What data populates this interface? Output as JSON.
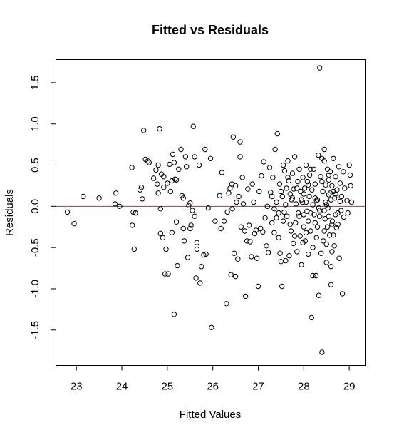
{
  "chart_data": {
    "type": "scatter",
    "title": "Fitted vs Residuals",
    "xlabel": "Fitted Values",
    "ylabel": "Residuals",
    "xlim": [
      22.55,
      29.35
    ],
    "ylim": [
      -1.93,
      1.78
    ],
    "xticks": [
      23,
      24,
      25,
      26,
      27,
      28,
      29
    ],
    "yticks": [
      -1.5,
      -1.0,
      -0.5,
      0.0,
      0.5,
      1.0,
      1.5
    ],
    "xtick_labels": [
      "23",
      "24",
      "25",
      "26",
      "27",
      "28",
      "29"
    ],
    "ytick_labels": [
      "-1.5",
      "-1.0",
      "-0.5",
      "0.0",
      "0.5",
      "1.0",
      "1.5"
    ],
    "reference_line": {
      "y": 0,
      "color": "#e0201b"
    },
    "point_color": "#000000",
    "grid": false,
    "points": [
      [
        22.8,
        -0.07
      ],
      [
        22.95,
        -0.21
      ],
      [
        23.15,
        0.12
      ],
      [
        23.5,
        0.1
      ],
      [
        23.85,
        0.03
      ],
      [
        23.87,
        0.16
      ],
      [
        23.95,
        0.0
      ],
      [
        24.22,
        0.47
      ],
      [
        24.23,
        -0.23
      ],
      [
        24.25,
        -0.07
      ],
      [
        24.27,
        -0.52
      ],
      [
        24.3,
        -0.08
      ],
      [
        24.3,
        -0.08
      ],
      [
        24.4,
        0.2
      ],
      [
        24.43,
        0.23
      ],
      [
        24.45,
        0.09
      ],
      [
        24.48,
        0.92
      ],
      [
        24.52,
        0.57
      ],
      [
        24.57,
        0.55
      ],
      [
        24.6,
        0.53
      ],
      [
        24.7,
        0.34
      ],
      [
        24.75,
        0.44
      ],
      [
        24.78,
        0.27
      ],
      [
        24.8,
        0.16
      ],
      [
        24.8,
        0.5
      ],
      [
        24.83,
        0.94
      ],
      [
        24.85,
        -0.33
      ],
      [
        24.85,
        -0.03
      ],
      [
        24.87,
        0.39
      ],
      [
        24.9,
        -0.38
      ],
      [
        24.92,
        0.36
      ],
      [
        24.92,
        0.23
      ],
      [
        24.95,
        -0.82
      ],
      [
        24.97,
        -0.52
      ],
      [
        25.0,
        0.28
      ],
      [
        25.02,
        -0.82
      ],
      [
        25.05,
        0.51
      ],
      [
        25.07,
        0.18
      ],
      [
        25.1,
        0.31
      ],
      [
        25.1,
        -0.32
      ],
      [
        25.12,
        0.63
      ],
      [
        25.15,
        -1.31
      ],
      [
        25.15,
        0.53
      ],
      [
        25.17,
        0.33
      ],
      [
        25.2,
        0.32
      ],
      [
        25.2,
        -0.19
      ],
      [
        25.22,
        -0.72
      ],
      [
        25.25,
        0.45
      ],
      [
        25.3,
        0.69
      ],
      [
        25.32,
        0.13
      ],
      [
        25.35,
        0.1
      ],
      [
        25.35,
        -0.27
      ],
      [
        25.37,
        -0.42
      ],
      [
        25.4,
        0.6
      ],
      [
        25.42,
        0.48
      ],
      [
        25.45,
        -0.62
      ],
      [
        25.47,
        0.01
      ],
      [
        25.5,
        0.04
      ],
      [
        25.5,
        -0.27
      ],
      [
        25.52,
        -0.23
      ],
      [
        25.55,
        -0.05
      ],
      [
        25.57,
        0.97
      ],
      [
        25.6,
        0.6
      ],
      [
        25.6,
        -0.12
      ],
      [
        25.63,
        -0.87
      ],
      [
        25.65,
        -0.52
      ],
      [
        25.65,
        -0.44
      ],
      [
        25.7,
        0.5
      ],
      [
        25.72,
        -0.93
      ],
      [
        25.75,
        -0.73
      ],
      [
        25.8,
        -0.59
      ],
      [
        25.83,
        0.69
      ],
      [
        25.85,
        -0.58
      ],
      [
        25.9,
        -0.02
      ],
      [
        25.95,
        0.58
      ],
      [
        25.97,
        -1.47
      ],
      [
        26.05,
        -0.18
      ],
      [
        26.15,
        0.13
      ],
      [
        26.18,
        -0.27
      ],
      [
        26.2,
        0.41
      ],
      [
        26.25,
        -0.18
      ],
      [
        26.3,
        -1.18
      ],
      [
        26.32,
        -0.07
      ],
      [
        26.35,
        0.16
      ],
      [
        26.38,
        0.22
      ],
      [
        26.4,
        -0.83
      ],
      [
        26.42,
        0.27
      ],
      [
        26.43,
        -0.03
      ],
      [
        26.45,
        0.84
      ],
      [
        26.47,
        -0.57
      ],
      [
        26.5,
        -0.85
      ],
      [
        26.5,
        0.25
      ],
      [
        26.52,
        0.05
      ],
      [
        26.55,
        -0.64
      ],
      [
        26.57,
        0.12
      ],
      [
        26.6,
        0.78
      ],
      [
        26.6,
        0.6
      ],
      [
        26.62,
        -0.25
      ],
      [
        26.65,
        0.35
      ],
      [
        26.67,
        0.03
      ],
      [
        26.7,
        -0.3
      ],
      [
        26.72,
        -1.09
      ],
      [
        26.75,
        -0.42
      ],
      [
        26.77,
        0.21
      ],
      [
        26.8,
        -0.23
      ],
      [
        26.82,
        -0.43
      ],
      [
        26.85,
        -0.61
      ],
      [
        26.87,
        0.27
      ],
      [
        26.9,
        0.05
      ],
      [
        26.92,
        -0.33
      ],
      [
        26.95,
        -0.29
      ],
      [
        26.97,
        -0.63
      ],
      [
        27.0,
        -0.97
      ],
      [
        27.02,
        0.18
      ],
      [
        27.05,
        -0.27
      ],
      [
        27.07,
        0.37
      ],
      [
        27.1,
        -0.31
      ],
      [
        27.12,
        0.54
      ],
      [
        27.15,
        -0.14
      ],
      [
        27.18,
        -0.48
      ],
      [
        27.2,
        0.0
      ],
      [
        27.22,
        -0.56
      ],
      [
        27.25,
        0.47
      ],
      [
        27.27,
        0.17
      ],
      [
        27.3,
        -0.2
      ],
      [
        27.32,
        0.35
      ],
      [
        27.35,
        -0.03
      ],
      [
        27.37,
        0.69
      ],
      [
        27.4,
        -0.14
      ],
      [
        27.42,
        0.88
      ],
      [
        27.45,
        -0.38
      ],
      [
        27.47,
        0.27
      ],
      [
        27.48,
        -0.57
      ],
      [
        27.5,
        -0.67
      ],
      [
        27.52,
        -0.97
      ],
      [
        27.53,
        0.12
      ],
      [
        27.55,
        0.5
      ],
      [
        27.57,
        -0.07
      ],
      [
        27.58,
        0.43
      ],
      [
        27.6,
        -0.66
      ],
      [
        27.62,
        0.22
      ],
      [
        27.63,
        -0.12
      ],
      [
        27.65,
        0.55
      ],
      [
        27.67,
        0.31
      ],
      [
        27.68,
        -0.6
      ],
      [
        27.7,
        0.15
      ],
      [
        27.72,
        -0.3
      ],
      [
        27.73,
        0.08
      ],
      [
        27.75,
        0.4
      ],
      [
        27.77,
        -0.45
      ],
      [
        27.78,
        0.21
      ],
      [
        27.8,
        0.6
      ],
      [
        27.82,
        -0.2
      ],
      [
        27.83,
        0.03
      ],
      [
        27.85,
        -0.55
      ],
      [
        27.87,
        0.3
      ],
      [
        27.88,
        -0.08
      ],
      [
        27.9,
        0.45
      ],
      [
        27.92,
        -0.36
      ],
      [
        27.93,
        0.18
      ],
      [
        27.95,
        -0.71
      ],
      [
        27.97,
        0.05
      ],
      [
        27.98,
        0.35
      ],
      [
        28.0,
        -0.25
      ],
      [
        28.02,
        0.22
      ],
      [
        28.03,
        -0.42
      ],
      [
        28.05,
        0.5
      ],
      [
        28.07,
        -0.06
      ],
      [
        28.08,
        0.3
      ],
      [
        28.1,
        -0.58
      ],
      [
        28.12,
        0.12
      ],
      [
        28.13,
        0.38
      ],
      [
        28.15,
        -0.3
      ],
      [
        28.17,
        -1.35
      ],
      [
        28.18,
        0.2
      ],
      [
        28.2,
        -0.5
      ],
      [
        28.22,
        0.45
      ],
      [
        28.23,
        -0.1
      ],
      [
        28.25,
        0.27
      ],
      [
        28.27,
        -0.84
      ],
      [
        28.28,
        0.07
      ],
      [
        28.3,
        -0.25
      ],
      [
        28.32,
        0.62
      ],
      [
        28.33,
        -1.08
      ],
      [
        28.35,
        -0.05
      ],
      [
        28.37,
        0.36
      ],
      [
        28.38,
        -0.57
      ],
      [
        28.4,
        -1.77
      ],
      [
        28.42,
        0.18
      ],
      [
        28.43,
        -0.42
      ],
      [
        28.45,
        0.55
      ],
      [
        28.47,
        -0.15
      ],
      [
        28.48,
        0.26
      ],
      [
        28.5,
        -0.68
      ],
      [
        28.52,
        0.45
      ],
      [
        28.53,
        -0.02
      ],
      [
        28.55,
        0.32
      ],
      [
        28.57,
        -0.35
      ],
      [
        28.58,
        0.16
      ],
      [
        28.6,
        -0.95
      ],
      [
        28.62,
        0.25
      ],
      [
        28.63,
        -0.18
      ],
      [
        28.65,
        0.58
      ],
      [
        28.67,
        -0.48
      ],
      [
        28.68,
        0.1
      ],
      [
        28.7,
        0.36
      ],
      [
        28.72,
        -0.26
      ],
      [
        28.73,
        0.2
      ],
      [
        28.75,
        -0.08
      ],
      [
        28.77,
        0.48
      ],
      [
        28.78,
        -0.63
      ],
      [
        28.8,
        0.28
      ],
      [
        28.82,
        -0.05
      ],
      [
        28.83,
        0.12
      ],
      [
        28.85,
        -1.06
      ],
      [
        28.87,
        0.42
      ],
      [
        28.88,
        -0.13
      ],
      [
        28.9,
        0.22
      ],
      [
        28.95,
        0.07
      ],
      [
        28.97,
        -0.08
      ],
      [
        29.0,
        0.5
      ],
      [
        29.02,
        0.38
      ],
      [
        29.03,
        0.25
      ],
      [
        29.05,
        0.05
      ],
      [
        28.35,
        1.68
      ],
      [
        28.4,
        0.58
      ],
      [
        28.45,
        0.69
      ],
      [
        28.5,
        0.02
      ],
      [
        28.5,
        -0.46
      ],
      [
        28.55,
        0.14
      ],
      [
        28.6,
        -0.73
      ],
      [
        28.62,
        -0.22
      ],
      [
        28.2,
        -0.84
      ],
      [
        28.25,
        -0.2
      ],
      [
        28.28,
        -0.38
      ],
      [
        28.3,
        0.08
      ],
      [
        28.15,
        0.45
      ],
      [
        28.1,
        -0.18
      ],
      [
        28.05,
        -0.32
      ],
      [
        28.0,
        0.15
      ],
      [
        27.95,
        0.08
      ],
      [
        27.9,
        -0.12
      ],
      [
        27.85,
        0.22
      ],
      [
        27.8,
        -0.36
      ],
      [
        27.75,
        0.1
      ],
      [
        27.7,
        -0.22
      ],
      [
        27.65,
        0.35
      ],
      [
        27.6,
        0.02
      ],
      [
        27.55,
        -0.18
      ],
      [
        27.5,
        0.18
      ],
      [
        27.45,
        -0.08
      ],
      [
        27.4,
        0.05
      ],
      [
        27.35,
        -0.32
      ],
      [
        27.3,
        0.12
      ],
      [
        28.45,
        -0.05
      ],
      [
        28.55,
        0.38
      ],
      [
        28.65,
        -0.35
      ],
      [
        28.7,
        0.15
      ],
      [
        28.75,
        -0.22
      ],
      [
        28.8,
        0.06
      ],
      [
        28.35,
        -0.12
      ],
      [
        28.4,
        0.3
      ],
      [
        28.45,
        -0.3
      ],
      [
        28.55,
        -0.12
      ],
      [
        28.6,
        0.08
      ],
      [
        28.65,
        0.18
      ],
      [
        28.25,
        0.1
      ],
      [
        28.2,
        0.02
      ],
      [
        28.15,
        -0.08
      ],
      [
        28.1,
        0.26
      ],
      [
        28.05,
        0.05
      ],
      [
        28.0,
        -0.1
      ],
      [
        27.98,
        -0.44
      ],
      [
        28.33,
        -0.02
      ],
      [
        28.48,
        0.05
      ],
      [
        28.52,
        -0.25
      ],
      [
        28.58,
        0.42
      ],
      [
        28.62,
        -0.55
      ],
      [
        28.7,
        -0.1
      ]
    ]
  }
}
